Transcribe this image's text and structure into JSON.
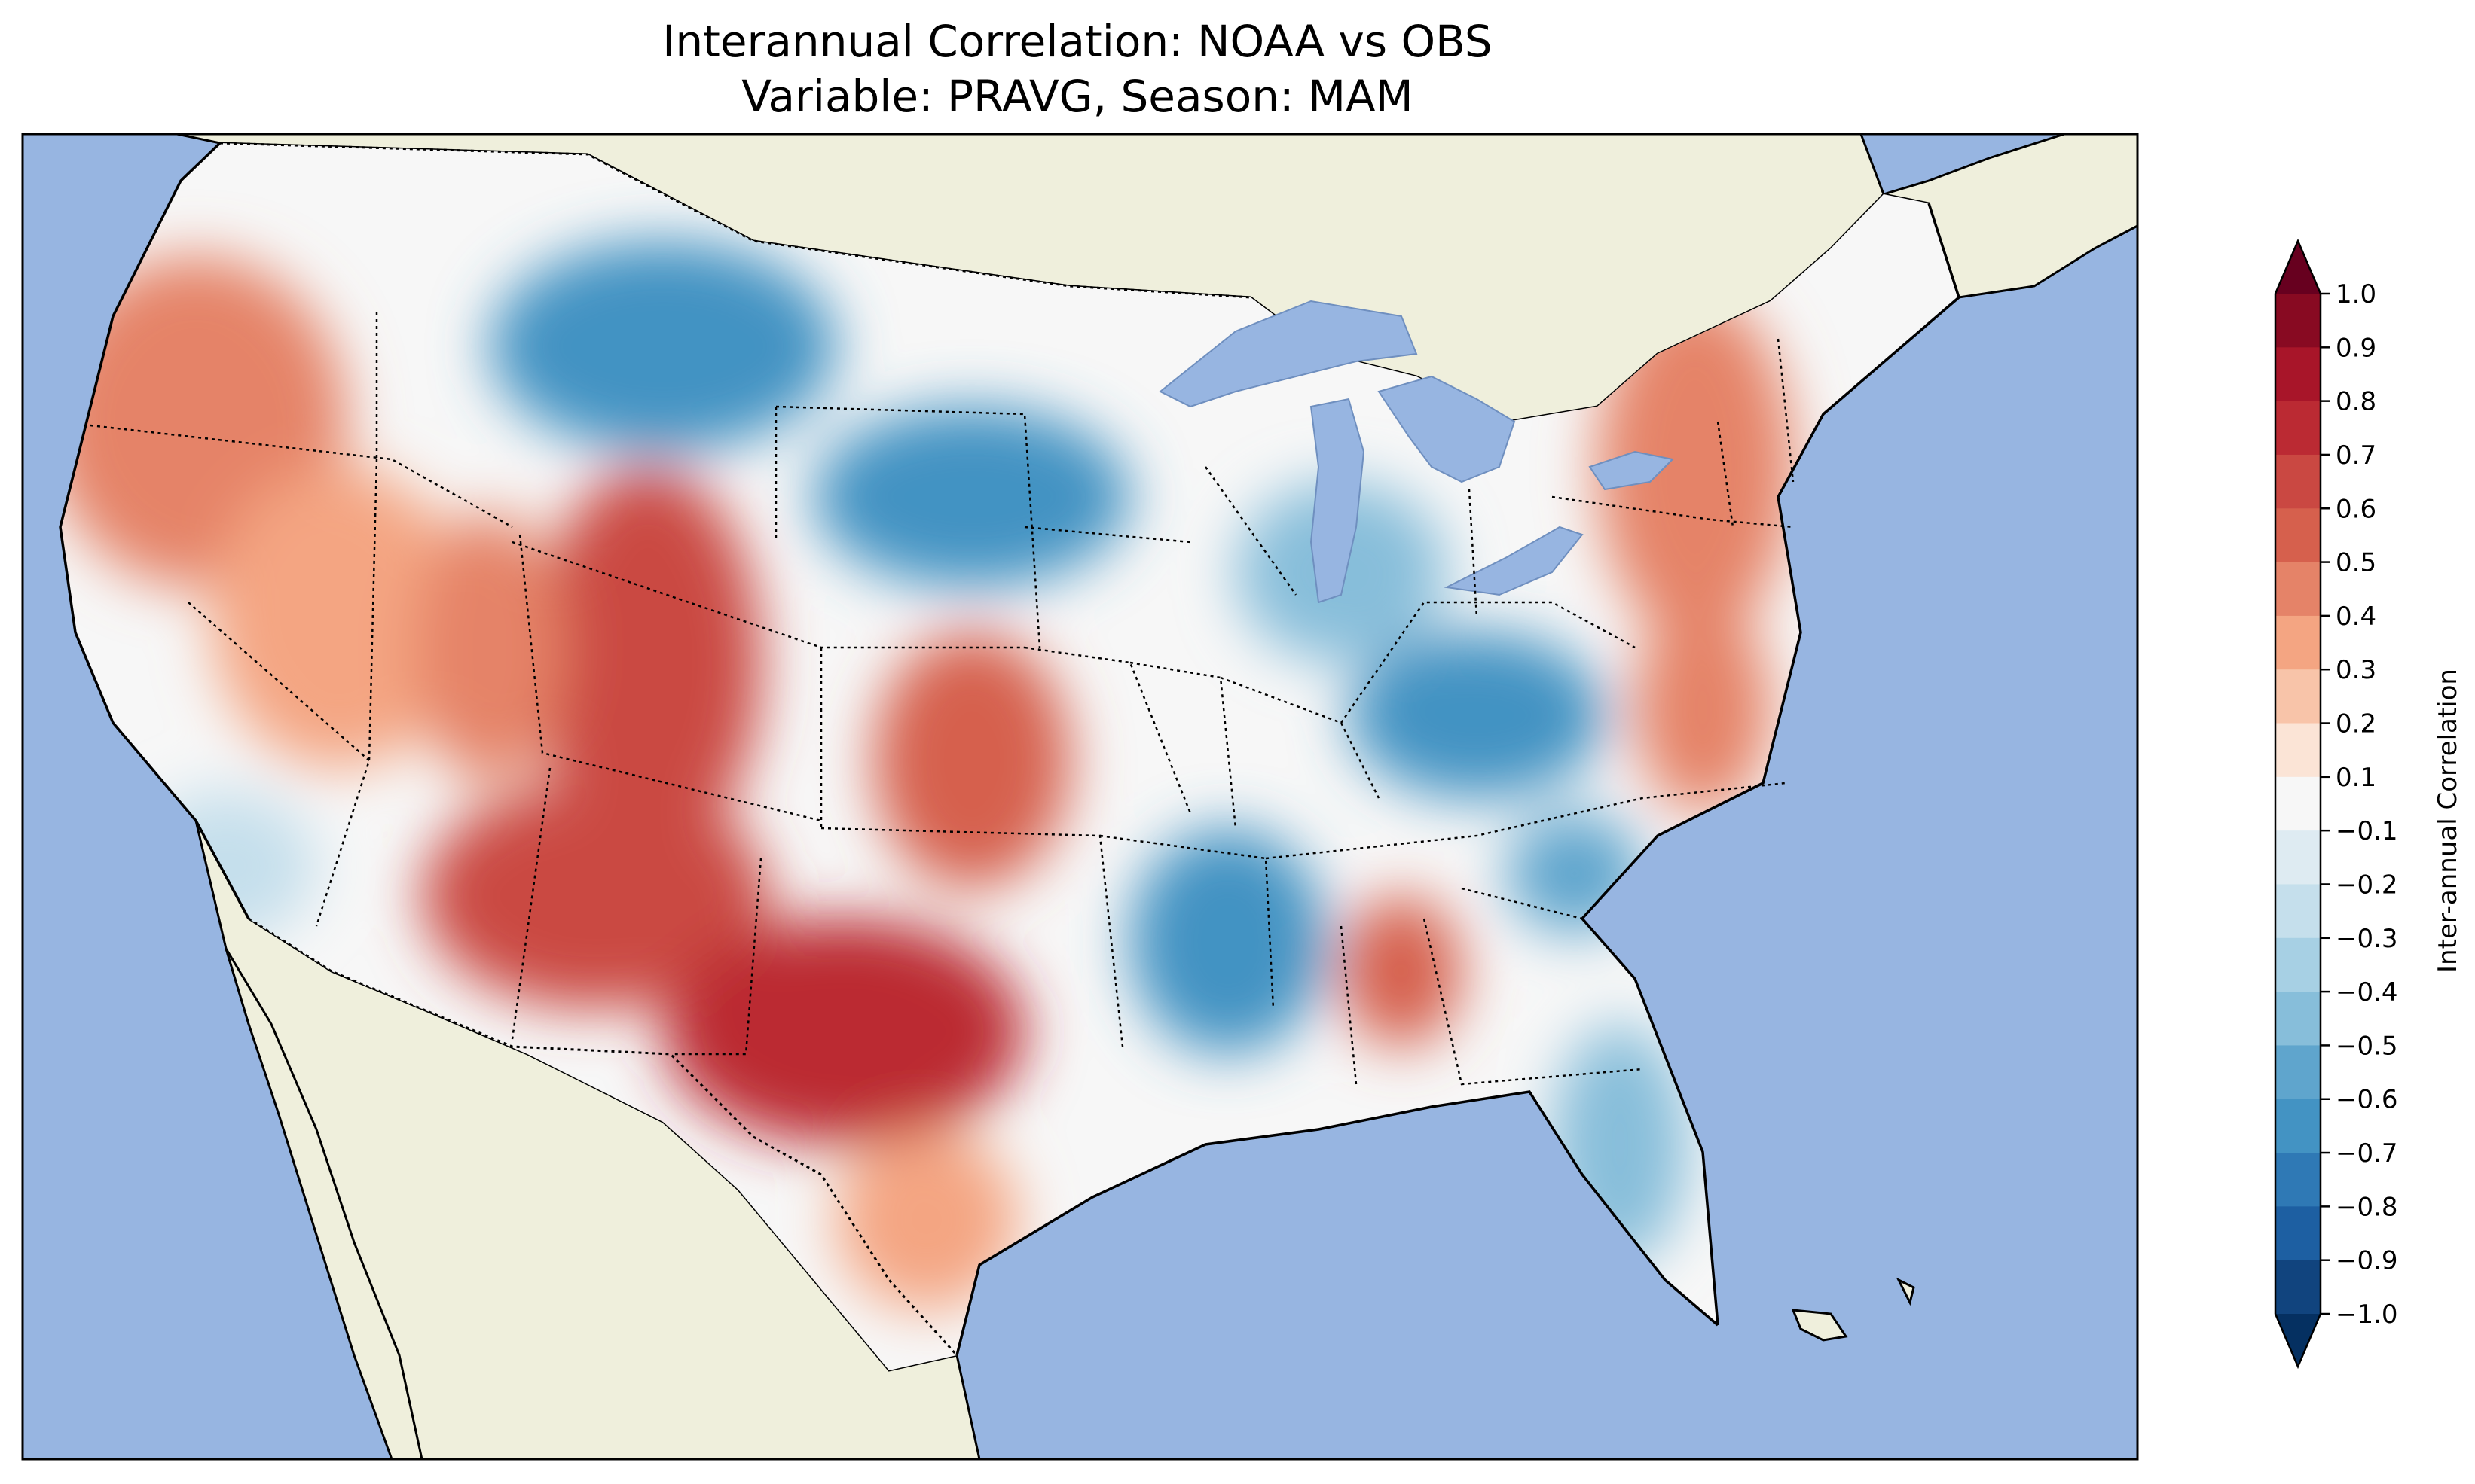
{
  "chart_data": {
    "type": "heatmap",
    "title_line1": "Interannual Correlation: NOAA vs OBS",
    "title_line2": "Variable: PRAVG, Season: MAM",
    "colorbar": {
      "label": "Inter-annual Correlation",
      "range": [
        -1.0,
        1.0
      ],
      "extend": "both",
      "ticks": [
        "1.0",
        "0.9",
        "0.8",
        "0.7",
        "0.6",
        "0.5",
        "0.4",
        "0.3",
        "0.2",
        "0.1",
        "−0.1",
        "−0.2",
        "−0.3",
        "−0.4",
        "−0.5",
        "−0.6",
        "−0.7",
        "−0.8",
        "−0.9",
        "−1.0"
      ],
      "colors": [
        "#67001f",
        "#880a22",
        "#a81529",
        "#bb2a33",
        "#ca4842",
        "#d6604d",
        "#e58368",
        "#f4a582",
        "#f8c4a9",
        "#fbe4d6",
        "#f7f7f7",
        "#deebf2",
        "#c5dfec",
        "#a7d0e4",
        "#87beda",
        "#5fa5cd",
        "#4393c3",
        "#2f79b5",
        "#1d5fa2",
        "#11447e",
        "#053061"
      ]
    },
    "map": {
      "region": "Contiguous United States",
      "ocean_color": "#97b5e1",
      "land_color": "#efefdc",
      "lake_color": "#97b5e1",
      "correlation_regions": [
        {
          "area": "Pacific Northwest / Oregon",
          "value": 0.45
        },
        {
          "area": "Great Basin / Nevada",
          "value": 0.35
        },
        {
          "area": "Northern Rockies (Montana)",
          "value": -0.6
        },
        {
          "area": "South Dakota / Minnesota",
          "value": -0.6
        },
        {
          "area": "Wyoming / Colorado",
          "value": 0.7
        },
        {
          "area": "Utah",
          "value": 0.5
        },
        {
          "area": "Arizona / New Mexico",
          "value": 0.7
        },
        {
          "area": "Kansas",
          "value": 0.55
        },
        {
          "area": "Texas / Oklahoma",
          "value": 0.75
        },
        {
          "area": "Lower Mississippi Valley",
          "value": -0.55
        },
        {
          "area": "Ohio Valley (Kentucky)",
          "value": -0.6
        },
        {
          "area": "Alabama",
          "value": 0.6
        },
        {
          "area": "Northeast / Mid-Atlantic",
          "value": 0.45
        },
        {
          "area": "Florida / Georgia",
          "value": -0.5
        },
        {
          "area": "Southern California",
          "value": -0.2
        }
      ]
    }
  }
}
